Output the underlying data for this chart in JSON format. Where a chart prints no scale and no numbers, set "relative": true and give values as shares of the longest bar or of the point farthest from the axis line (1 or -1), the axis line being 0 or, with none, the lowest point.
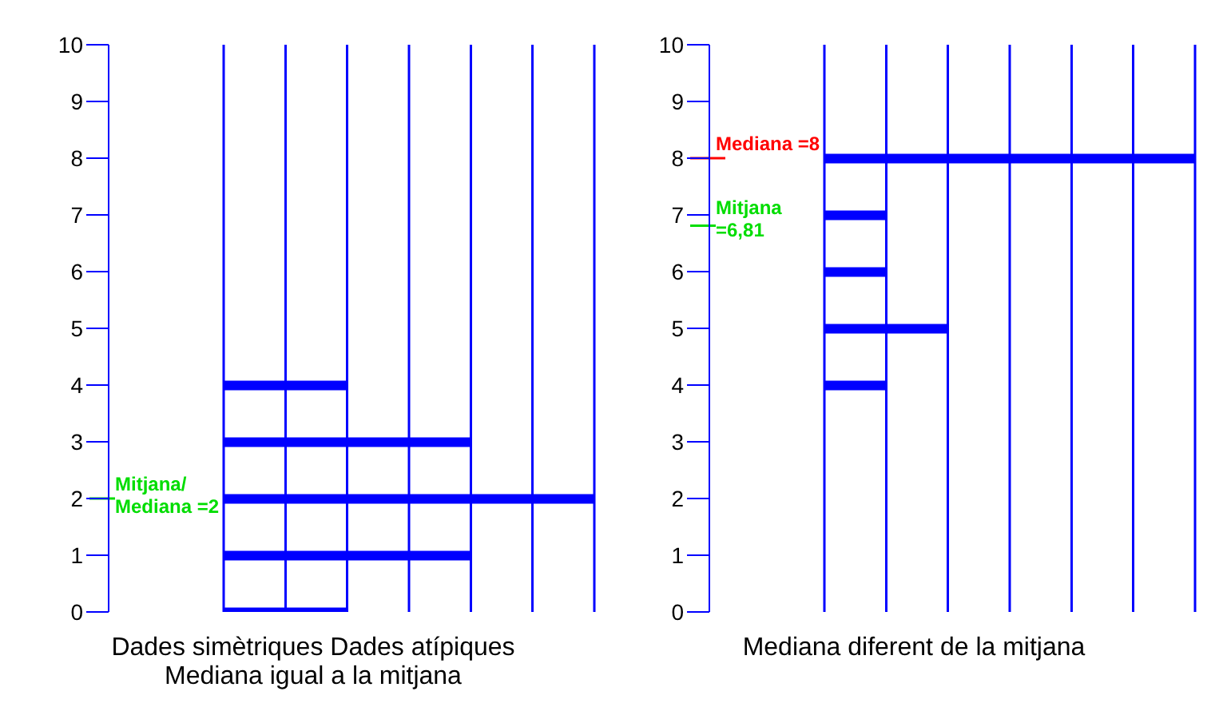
{
  "chart_data": [
    {
      "type": "bar",
      "orientation": "horizontal",
      "relative": true,
      "x": [
        0,
        1,
        2,
        3,
        4
      ],
      "values": [
        0.333,
        0.667,
        1,
        0.667,
        0.333
      ],
      "color": "#0000ff",
      "ylim": [
        0,
        10
      ],
      "yticks": [
        0,
        1,
        2,
        3,
        4,
        5,
        6,
        7,
        8,
        9,
        10
      ],
      "xlabel": "Dades simètriques Dades atípiques",
      "annotations": [
        "Mediana igual a la mitjana"
      ],
      "ref_lines": [
        {
          "axis": "y",
          "value": 2,
          "label": "Mitjana/ Mediana =2",
          "color": "#00dd00"
        },
        {
          "axis": "x",
          "value": 0,
          "color": "#0000ff"
        },
        {
          "axis": "x",
          "value": 0.167,
          "color": "#0000ff"
        },
        {
          "axis": "x",
          "value": 0.333,
          "color": "#0000ff"
        },
        {
          "axis": "x",
          "value": 0.5,
          "color": "#0000ff"
        },
        {
          "axis": "x",
          "value": 0.667,
          "color": "#0000ff"
        },
        {
          "axis": "x",
          "value": 0.833,
          "color": "#0000ff"
        },
        {
          "axis": "x",
          "value": 1,
          "color": "#0000ff"
        }
      ]
    },
    {
      "type": "bar",
      "orientation": "horizontal",
      "relative": true,
      "x": [
        4,
        5,
        6,
        7,
        8
      ],
      "values": [
        0.167,
        0.333,
        0.167,
        0.167,
        1
      ],
      "color": "#0000ff",
      "ylim": [
        0,
        10
      ],
      "yticks": [
        0,
        1,
        2,
        3,
        4,
        5,
        6,
        7,
        8,
        9,
        10
      ],
      "xlabel": "Mediana diferent de la mitjana",
      "ref_lines": [
        {
          "axis": "y",
          "value": 8,
          "label": "Mediana =8",
          "color": "#ff0000"
        },
        {
          "axis": "y",
          "value": 6.81,
          "label": "Mitjana =6,81",
          "color": "#00dd00"
        },
        {
          "axis": "x",
          "value": 0,
          "color": "#0000ff"
        },
        {
          "axis": "x",
          "value": 0.167,
          "color": "#0000ff"
        },
        {
          "axis": "x",
          "value": 0.333,
          "color": "#0000ff"
        },
        {
          "axis": "x",
          "value": 0.5,
          "color": "#0000ff"
        },
        {
          "axis": "x",
          "value": 0.667,
          "color": "#0000ff"
        },
        {
          "axis": "x",
          "value": 0.833,
          "color": "#0000ff"
        },
        {
          "axis": "x",
          "value": 1,
          "color": "#0000ff"
        }
      ]
    }
  ]
}
